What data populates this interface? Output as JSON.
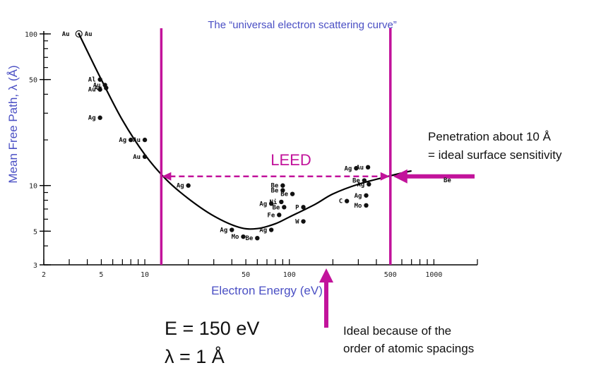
{
  "chart_data": {
    "type": "scatter",
    "title": "The “universal electron scattering curve”",
    "xlabel": "Electron Energy (eV)",
    "ylabel": "Mean Free Path, λ (Å)",
    "xscale": "log",
    "yscale": "log",
    "xlim": [
      2,
      2000
    ],
    "ylim": [
      3,
      110
    ],
    "x_ticks": [
      2,
      5,
      10,
      50,
      100,
      500,
      1000
    ],
    "y_ticks": [
      3,
      5,
      10,
      50,
      100
    ],
    "curve": {
      "x": [
        3.5,
        5,
        7,
        10,
        14,
        20,
        30,
        45,
        60,
        80,
        100,
        150,
        200,
        300,
        500,
        700
      ],
      "y": [
        100,
        50,
        27,
        16,
        11,
        8.2,
        6.3,
        5.3,
        5.2,
        5.6,
        6.2,
        7.5,
        8.8,
        10.2,
        11.6,
        12.5
      ]
    },
    "points": [
      {
        "label": "Au",
        "x": 3.5,
        "y": 100,
        "circled": true
      },
      {
        "label": "Al",
        "x": 4.9,
        "y": 50
      },
      {
        "label": "Au",
        "x": 5.3,
        "y": 46
      },
      {
        "label": "Au",
        "x": 4.9,
        "y": 43
      },
      {
        "label": "Ag",
        "x": 5.4,
        "y": 44
      },
      {
        "label": "Ag",
        "x": 4.9,
        "y": 28
      },
      {
        "label": "Ag",
        "x": 8,
        "y": 20
      },
      {
        "label": "Au",
        "x": 10,
        "y": 20
      },
      {
        "label": "Au",
        "x": 10,
        "y": 15.5
      },
      {
        "label": "Ag",
        "x": 20,
        "y": 10
      },
      {
        "label": "Be",
        "x": 90,
        "y": 10
      },
      {
        "label": "Be",
        "x": 90,
        "y": 9.3
      },
      {
        "label": "Be",
        "x": 105,
        "y": 8.8
      },
      {
        "label": "Ni",
        "x": 88,
        "y": 7.8
      },
      {
        "label": "Ag",
        "x": 75,
        "y": 7.6
      },
      {
        "label": "Be",
        "x": 92,
        "y": 7.2
      },
      {
        "label": "P",
        "x": 125,
        "y": 7.2
      },
      {
        "label": "Fe",
        "x": 85,
        "y": 6.4
      },
      {
        "label": "W",
        "x": 125,
        "y": 5.8
      },
      {
        "label": "Ag",
        "x": 40,
        "y": 5.1
      },
      {
        "label": "Ag",
        "x": 75,
        "y": 5.1
      },
      {
        "label": "Mo",
        "x": 48,
        "y": 4.6
      },
      {
        "label": "Be",
        "x": 60,
        "y": 4.5
      },
      {
        "label": "Ag",
        "x": 290,
        "y": 13
      },
      {
        "label": "Au",
        "x": 350,
        "y": 13.2
      },
      {
        "label": "Be",
        "x": 330,
        "y": 10.8
      },
      {
        "label": "Ag",
        "x": 355,
        "y": 10.2
      },
      {
        "label": "C",
        "x": 250,
        "y": 7.9
      },
      {
        "label": "Ag",
        "x": 340,
        "y": 8.6
      },
      {
        "label": "Mo",
        "x": 340,
        "y": 7.4
      }
    ],
    "leed_range_x": [
      13,
      500
    ],
    "leed_lambda": 11.5,
    "grid": false,
    "legend": "none"
  },
  "annotations": {
    "leed_label": "LEED",
    "penetration_line1": "Penetration about 10 Å",
    "penetration_line2": "= ideal surface sensitivity",
    "energy_eq": "E = 150 eV",
    "lambda_eq": "λ = 1 Å",
    "ideal_line1": "Ideal because of the",
    "ideal_line2": "order of atomic spacings",
    "partial_label": "Be"
  },
  "colors": {
    "axis_text": "#4a4fc4",
    "highlight": "#c2139b",
    "curve": "#000000"
  }
}
